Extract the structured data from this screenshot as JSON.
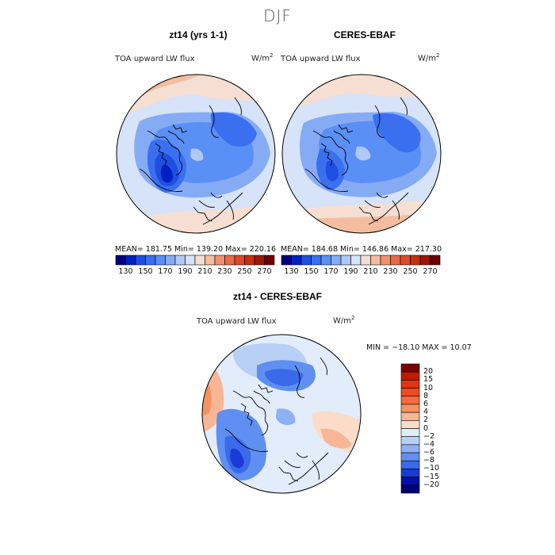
{
  "title": "DJF",
  "variable": "TOA upward LW flux",
  "units_base": "W/m",
  "units_exp": "2",
  "panels": [
    {
      "title": "zt14 (yrs 1-1)",
      "stats": "MEAN= 181.75   Min= 139.20   Max= 220.16"
    },
    {
      "title": "CERES-EBAF",
      "stats": "MEAN= 184.68   Min= 146.86   Max= 217.30"
    }
  ],
  "top_colorbar": {
    "labels": [
      "130",
      "150",
      "170",
      "190",
      "210",
      "230",
      "250",
      "270"
    ],
    "colors": [
      "#000080",
      "#0020c0",
      "#1e4fe0",
      "#3a6ff0",
      "#5a8ff5",
      "#86abf5",
      "#b0c8f5",
      "#d6e3f8",
      "#f6dfd2",
      "#f5bda0",
      "#f09272",
      "#e86a4a",
      "#dc4a2a",
      "#c43010",
      "#9a1808",
      "#6e0000"
    ]
  },
  "diff_panel": {
    "title": "zt14 - CERES-EBAF",
    "minmax": "MIN = −18.10  MAX =   10.07"
  },
  "diff_colorbar": {
    "labels": [
      "20",
      "15",
      "10",
      "8",
      "6",
      "4",
      "2",
      "0",
      "−2",
      "−4",
      "−6",
      "−8",
      "−10",
      "−15",
      "−20"
    ],
    "colors": [
      "#7a0000",
      "#c01a00",
      "#e23410",
      "#f04a20",
      "#f56a3e",
      "#f6925e",
      "#f7b696",
      "#fadcc8",
      "#e2ecfa",
      "#b8cff6",
      "#8eb0f4",
      "#5f8ff0",
      "#3a6ae8",
      "#1a3ad8",
      "#0010a8",
      "#000070"
    ]
  }
}
